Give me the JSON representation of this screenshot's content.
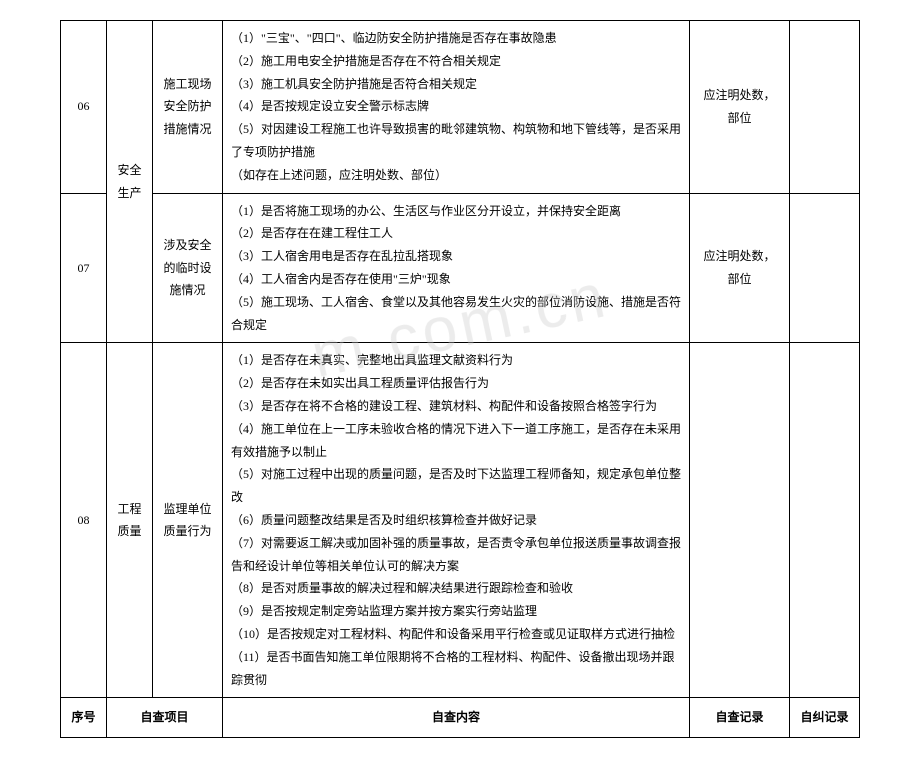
{
  "watermark": "m.com.cn",
  "rows": [
    {
      "num": "06",
      "category": "安全生产",
      "item": "施工现场安全防护措施情况",
      "content": "（1）\"三宝\"、\"四口\"、临边防安全防护措施是否存在事故隐患\n（2）施工用电安全护措施是否存在不符合相关规定\n（3）施工机具安全防护措施是否符合相关规定\n（4）是否按规定设立安全警示标志牌\n（5）对因建设工程施工也许导致损害的毗邻建筑物、构筑物和地下管线等，是否采用了专项防护措施\n（如存在上述问题，应注明处数、部位）",
      "record": "应注明处数，部位",
      "selfcorrect": ""
    },
    {
      "num": "07",
      "category": "",
      "item": "涉及安全的临时设施情况",
      "content": "（1）是否将施工现场的办公、生活区与作业区分开设立，并保持安全距离\n（2）是否存在在建工程住工人\n（3）工人宿舍用电是否存在乱拉乱搭现象\n（4）工人宿舍内是否存在使用\"三炉\"现象\n（5）施工现场、工人宿舍、食堂以及其他容易发生火灾的部位消防设施、措施是否符合规定",
      "record": "应注明处数，部位",
      "selfcorrect": ""
    },
    {
      "num": "08",
      "category": "工程质量",
      "item": "监理单位质量行为",
      "content": "（1）是否存在未真实、完整地出具监理文献资料行为\n（2）是否存在未如实出具工程质量评估报告行为\n（3）是否存在将不合格的建设工程、建筑材料、构配件和设备按照合格签字行为\n（4）施工单位在上一工序未验收合格的情况下进入下一道工序施工，是否存在未采用有效措施予以制止\n（5）对施工过程中出现的质量问题，是否及时下达监理工程师备知，规定承包单位整改\n（6）质量问题整改结果是否及时组织核算检查并做好记录\n（7）对需要返工解决或加固补强的质量事故，是否责令承包单位报送质量事故调查报告和经设计单位等相关单位认可的解决方案\n（8）是否对质量事故的解决过程和解决结果进行跟踪检查和验收\n（9）是否按规定制定旁站监理方案并按方案实行旁站监理\n（10）是否按规定对工程材料、构配件和设备采用平行检查或见证取样方式进行抽检\n（11）是否书面告知施工单位限期将不合格的工程材料、构配件、设备撤出现场并跟踪贯彻",
      "record": "",
      "selfcorrect": ""
    }
  ],
  "header": {
    "num": "序号",
    "item": "自查项目",
    "content": "自查内容",
    "record": "自查记录",
    "selfcorrect": "自纠记录"
  }
}
